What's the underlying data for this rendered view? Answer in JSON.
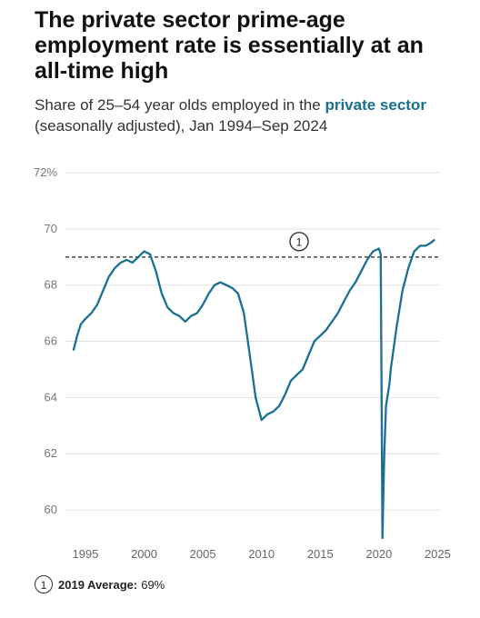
{
  "title": "The private sector prime-age employment rate is essentially at an all-time high",
  "subtitle": {
    "before": "Share of 25–54 year olds employed in the ",
    "highlight": "private sector",
    "after": " (seasonally adjusted), Jan 1994–Sep 2024"
  },
  "footnote": {
    "marker": "1",
    "label": "2019 Average:",
    "value": "69%"
  },
  "colors": {
    "line": "#1b6f93",
    "highlight_text": "#1b6f93",
    "reference_line": "#555555",
    "grid": "#e2e2e2"
  },
  "chart_data": {
    "type": "line",
    "title": "",
    "xlabel": "",
    "ylabel": "",
    "xlim": [
      1993.3,
      2025.2
    ],
    "ylim": [
      59,
      72
    ],
    "y_ticks": [
      60,
      62,
      64,
      66,
      68,
      70,
      72
    ],
    "y_tick_labels": [
      "60",
      "62",
      "64",
      "66",
      "68",
      "70",
      "72%"
    ],
    "x_ticks": [
      1995,
      2000,
      2005,
      2010,
      2015,
      2020,
      2025
    ],
    "x_tick_labels": [
      "1995",
      "2000",
      "2005",
      "2010",
      "2015",
      "2020",
      "2025"
    ],
    "grid": "horizontal",
    "reference_line": {
      "y": 69,
      "marker": "1",
      "marker_x": 2013.2,
      "style": "dashed"
    },
    "series": [
      {
        "values": [
          [
            1994.0,
            65.7
          ],
          [
            1994.3,
            66.2
          ],
          [
            1994.6,
            66.6
          ],
          [
            1995.0,
            66.8
          ],
          [
            1995.5,
            67.0
          ],
          [
            1996.0,
            67.3
          ],
          [
            1996.5,
            67.8
          ],
          [
            1997.0,
            68.3
          ],
          [
            1997.5,
            68.6
          ],
          [
            1998.0,
            68.8
          ],
          [
            1998.5,
            68.9
          ],
          [
            1999.0,
            68.8
          ],
          [
            1999.5,
            69.0
          ],
          [
            2000.0,
            69.2
          ],
          [
            2000.5,
            69.1
          ],
          [
            2001.0,
            68.5
          ],
          [
            2001.5,
            67.7
          ],
          [
            2002.0,
            67.2
          ],
          [
            2002.5,
            67.0
          ],
          [
            2003.0,
            66.9
          ],
          [
            2003.5,
            66.7
          ],
          [
            2004.0,
            66.9
          ],
          [
            2004.5,
            67.0
          ],
          [
            2005.0,
            67.3
          ],
          [
            2005.5,
            67.7
          ],
          [
            2006.0,
            68.0
          ],
          [
            2006.5,
            68.1
          ],
          [
            2007.0,
            68.0
          ],
          [
            2007.5,
            67.9
          ],
          [
            2008.0,
            67.7
          ],
          [
            2008.5,
            67.0
          ],
          [
            2009.0,
            65.5
          ],
          [
            2009.5,
            64.0
          ],
          [
            2010.0,
            63.2
          ],
          [
            2010.5,
            63.4
          ],
          [
            2011.0,
            63.5
          ],
          [
            2011.5,
            63.7
          ],
          [
            2012.0,
            64.1
          ],
          [
            2012.5,
            64.6
          ],
          [
            2013.0,
            64.8
          ],
          [
            2013.5,
            65.0
          ],
          [
            2014.0,
            65.5
          ],
          [
            2014.5,
            66.0
          ],
          [
            2015.0,
            66.2
          ],
          [
            2015.5,
            66.4
          ],
          [
            2016.0,
            66.7
          ],
          [
            2016.5,
            67.0
          ],
          [
            2017.0,
            67.4
          ],
          [
            2017.5,
            67.8
          ],
          [
            2018.0,
            68.1
          ],
          [
            2018.5,
            68.5
          ],
          [
            2019.0,
            68.9
          ],
          [
            2019.5,
            69.2
          ],
          [
            2020.0,
            69.3
          ],
          [
            2020.15,
            69.1
          ],
          [
            2020.3,
            59.0
          ],
          [
            2020.45,
            62.0
          ],
          [
            2020.6,
            63.7
          ],
          [
            2020.9,
            64.5
          ],
          [
            2021.0,
            65.0
          ],
          [
            2021.5,
            66.5
          ],
          [
            2022.0,
            67.8
          ],
          [
            2022.5,
            68.6
          ],
          [
            2023.0,
            69.2
          ],
          [
            2023.5,
            69.4
          ],
          [
            2024.0,
            69.4
          ],
          [
            2024.4,
            69.5
          ],
          [
            2024.7,
            69.6
          ]
        ]
      }
    ]
  }
}
